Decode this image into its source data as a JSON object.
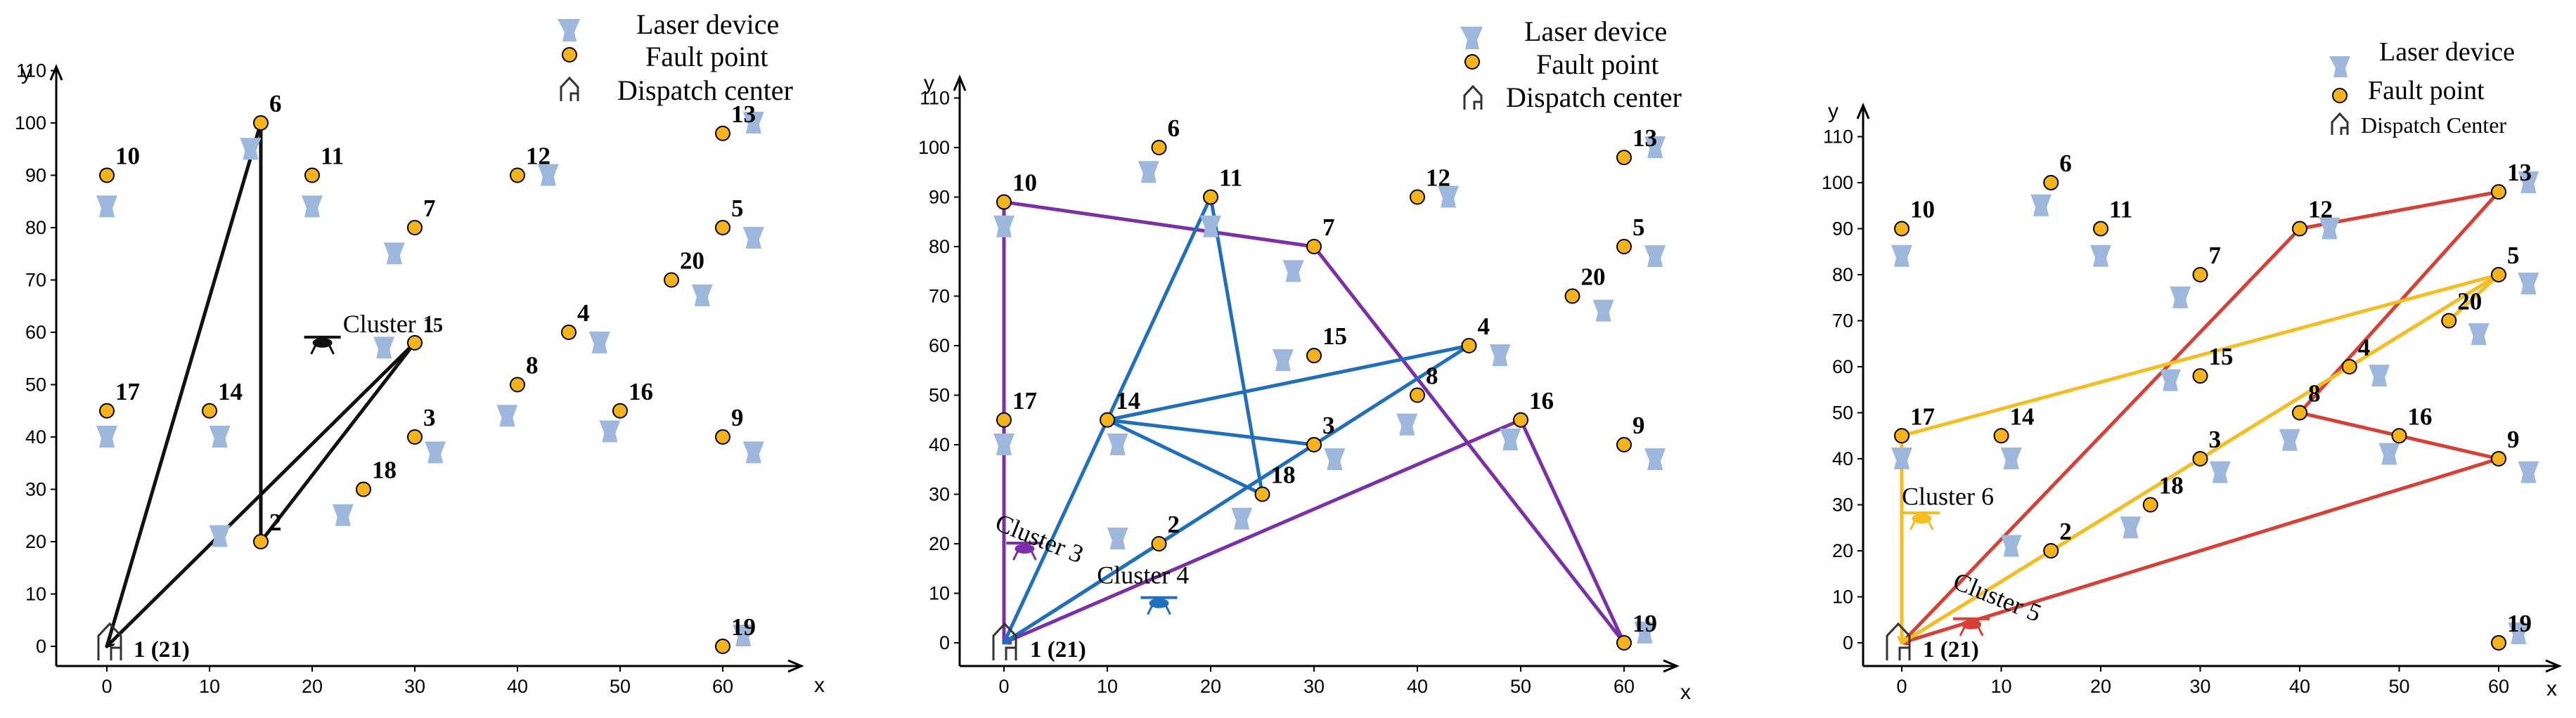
{
  "colors": {
    "fault": "#f5b31a",
    "laser": "#9db8dc",
    "black_route": "#111111",
    "purple": "#7b2fa8",
    "blue": "#1f6fc0",
    "red": "#d94035",
    "yellow": "#f5bd1f"
  },
  "chart_data": [
    {
      "type": "scatter",
      "title": "",
      "xlabel": "x",
      "ylabel": "y",
      "xlim": [
        -5,
        67
      ],
      "ylim": [
        -5,
        113
      ],
      "x_ticks": [
        "0",
        "10",
        "20",
        "30",
        "40",
        "50",
        "60"
      ],
      "y_ticks": [
        "0",
        "10",
        "20",
        "30",
        "40",
        "50",
        "60",
        "70",
        "80",
        "90",
        "100",
        "110"
      ],
      "legend": [
        "Laser device",
        "Fault point",
        "Dispatch center"
      ],
      "legend_icons": [
        "laser-device-icon",
        "fault-point-icon",
        "dispatch-center-icon"
      ],
      "depot_label": "1  (21)",
      "fault_points": [
        {
          "id": "2",
          "x": 15,
          "y": 20
        },
        {
          "id": "3",
          "x": 30,
          "y": 40
        },
        {
          "id": "4",
          "x": 45,
          "y": 60
        },
        {
          "id": "5",
          "x": 60,
          "y": 80
        },
        {
          "id": "6",
          "x": 15,
          "y": 100
        },
        {
          "id": "7",
          "x": 30,
          "y": 80
        },
        {
          "id": "8",
          "x": 40,
          "y": 50
        },
        {
          "id": "9",
          "x": 60,
          "y": 40
        },
        {
          "id": "10",
          "x": 0,
          "y": 90
        },
        {
          "id": "11",
          "x": 20,
          "y": 90
        },
        {
          "id": "12",
          "x": 40,
          "y": 90
        },
        {
          "id": "13",
          "x": 60,
          "y": 98
        },
        {
          "id": "14",
          "x": 10,
          "y": 45
        },
        {
          "id": "15",
          "x": 30,
          "y": 58
        },
        {
          "id": "16",
          "x": 50,
          "y": 45
        },
        {
          "id": "17",
          "x": 0,
          "y": 45
        },
        {
          "id": "18",
          "x": 25,
          "y": 30
        },
        {
          "id": "19",
          "x": 60,
          "y": 0
        },
        {
          "id": "20",
          "x": 55,
          "y": 70
        }
      ],
      "laser_devices": [
        {
          "x": 0,
          "y": 84
        },
        {
          "x": 0,
          "y": 40
        },
        {
          "x": 11,
          "y": 21
        },
        {
          "x": 11,
          "y": 40
        },
        {
          "x": 14,
          "y": 95
        },
        {
          "x": 20,
          "y": 84
        },
        {
          "x": 23,
          "y": 25
        },
        {
          "x": 28,
          "y": 75
        },
        {
          "x": 27,
          "y": 57
        },
        {
          "x": 32,
          "y": 37
        },
        {
          "x": 39,
          "y": 44
        },
        {
          "x": 43,
          "y": 90
        },
        {
          "x": 48,
          "y": 58
        },
        {
          "x": 49,
          "y": 41
        },
        {
          "x": 58,
          "y": 67
        },
        {
          "x": 63,
          "y": 78
        },
        {
          "x": 63,
          "y": 37
        },
        {
          "x": 63,
          "y": 100
        },
        {
          "x": 62,
          "y": 2
        }
      ],
      "routes": [
        {
          "name": "Cluster 1",
          "color": "black",
          "path": [
            [
              0,
              0
            ],
            [
              15,
              100
            ],
            [
              15,
              20
            ],
            [
              30,
              58
            ],
            [
              0,
              0
            ]
          ]
        }
      ],
      "clusters": [
        {
          "label": "Cluster 1",
          "x": 23,
          "y": 60,
          "color": "black",
          "drone": {
            "x": 21,
            "y": 58
          }
        }
      ]
    },
    {
      "type": "scatter",
      "title": "",
      "xlabel": "x",
      "ylabel": "y",
      "xlim": [
        -5,
        67
      ],
      "ylim": [
        -5,
        113
      ],
      "x_ticks": [
        "0",
        "10",
        "20",
        "30",
        "40",
        "50",
        "60"
      ],
      "y_ticks": [
        "0",
        "10",
        "20",
        "30",
        "40",
        "50",
        "60",
        "70",
        "80",
        "90",
        "100",
        "110"
      ],
      "legend": [
        "Laser device",
        "Fault point",
        "Dispatch center"
      ],
      "legend_icons": [
        "laser-device-icon",
        "fault-point-icon",
        "dispatch-center-icon"
      ],
      "depot_label": "1  (21)",
      "fault_points": [
        {
          "id": "2",
          "x": 15,
          "y": 20
        },
        {
          "id": "3",
          "x": 30,
          "y": 40
        },
        {
          "id": "4",
          "x": 45,
          "y": 60
        },
        {
          "id": "5",
          "x": 60,
          "y": 80
        },
        {
          "id": "6",
          "x": 15,
          "y": 100
        },
        {
          "id": "7",
          "x": 30,
          "y": 80
        },
        {
          "id": "8",
          "x": 40,
          "y": 50
        },
        {
          "id": "9",
          "x": 60,
          "y": 40
        },
        {
          "id": "10",
          "x": 0,
          "y": 89
        },
        {
          "id": "11",
          "x": 20,
          "y": 90
        },
        {
          "id": "12",
          "x": 40,
          "y": 90
        },
        {
          "id": "13",
          "x": 60,
          "y": 98
        },
        {
          "id": "14",
          "x": 10,
          "y": 45
        },
        {
          "id": "15",
          "x": 30,
          "y": 58
        },
        {
          "id": "16",
          "x": 50,
          "y": 45
        },
        {
          "id": "17",
          "x": 0,
          "y": 45
        },
        {
          "id": "18",
          "x": 25,
          "y": 30
        },
        {
          "id": "19",
          "x": 60,
          "y": 0
        },
        {
          "id": "20",
          "x": 55,
          "y": 70
        }
      ],
      "laser_devices": [
        {
          "x": 0,
          "y": 84
        },
        {
          "x": 0,
          "y": 40
        },
        {
          "x": 11,
          "y": 21
        },
        {
          "x": 11,
          "y": 40
        },
        {
          "x": 14,
          "y": 95
        },
        {
          "x": 20,
          "y": 84
        },
        {
          "x": 23,
          "y": 25
        },
        {
          "x": 28,
          "y": 75
        },
        {
          "x": 27,
          "y": 57
        },
        {
          "x": 32,
          "y": 37
        },
        {
          "x": 39,
          "y": 44
        },
        {
          "x": 43,
          "y": 90
        },
        {
          "x": 48,
          "y": 58
        },
        {
          "x": 49,
          "y": 41
        },
        {
          "x": 58,
          "y": 67
        },
        {
          "x": 63,
          "y": 78
        },
        {
          "x": 63,
          "y": 37
        },
        {
          "x": 63,
          "y": 100
        },
        {
          "x": 62,
          "y": 2
        }
      ],
      "routes": [
        {
          "name": "Cluster 3",
          "color": "purple",
          "path": [
            [
              0,
              0
            ],
            [
              0,
              89
            ],
            [
              30,
              80
            ],
            [
              60,
              0
            ],
            [
              50,
              45
            ],
            [
              0,
              0
            ]
          ]
        },
        {
          "name": "Cluster 4",
          "color": "blue",
          "path": [
            [
              0,
              0
            ],
            [
              30,
              40
            ],
            [
              10,
              45
            ],
            [
              45,
              60
            ],
            [
              0,
              0
            ],
            [
              20,
              90
            ],
            [
              25,
              30
            ],
            [
              10,
              45
            ]
          ]
        }
      ],
      "clusters": [
        {
          "label": "Cluster 3",
          "x": -1,
          "y": 23,
          "color": "purple",
          "drone": {
            "x": 2,
            "y": 19
          }
        },
        {
          "label": "Cluster 4",
          "x": 9,
          "y": 12,
          "color": "blue",
          "drone": {
            "x": 15,
            "y": 8
          }
        }
      ]
    },
    {
      "type": "scatter",
      "title": "",
      "xlabel": "x",
      "ylabel": "y",
      "xlim": [
        -5,
        67
      ],
      "ylim": [
        -5,
        113
      ],
      "x_ticks": [
        "0",
        "10",
        "20",
        "30",
        "40",
        "50",
        "60"
      ],
      "y_ticks": [
        "0",
        "10",
        "20",
        "30",
        "40",
        "50",
        "60",
        "70",
        "80",
        "90",
        "100",
        "110"
      ],
      "legend": [
        "Laser device",
        "Fault point",
        "Dispatch Center"
      ],
      "legend_icons": [
        "laser-device-icon",
        "fault-point-icon",
        "dispatch-center-icon"
      ],
      "depot_label": "1  (21)",
      "fault_points": [
        {
          "id": "2",
          "x": 15,
          "y": 20
        },
        {
          "id": "3",
          "x": 30,
          "y": 40
        },
        {
          "id": "4",
          "x": 45,
          "y": 60
        },
        {
          "id": "5",
          "x": 60,
          "y": 80
        },
        {
          "id": "6",
          "x": 15,
          "y": 100
        },
        {
          "id": "7",
          "x": 30,
          "y": 80
        },
        {
          "id": "8",
          "x": 40,
          "y": 50
        },
        {
          "id": "9",
          "x": 60,
          "y": 40
        },
        {
          "id": "10",
          "x": 0,
          "y": 90
        },
        {
          "id": "11",
          "x": 20,
          "y": 90
        },
        {
          "id": "12",
          "x": 40,
          "y": 90
        },
        {
          "id": "13",
          "x": 60,
          "y": 98
        },
        {
          "id": "14",
          "x": 10,
          "y": 45
        },
        {
          "id": "15",
          "x": 30,
          "y": 58
        },
        {
          "id": "16",
          "x": 50,
          "y": 45
        },
        {
          "id": "17",
          "x": 0,
          "y": 45
        },
        {
          "id": "18",
          "x": 25,
          "y": 30
        },
        {
          "id": "19",
          "x": 60,
          "y": 0
        },
        {
          "id": "20",
          "x": 55,
          "y": 70
        }
      ],
      "laser_devices": [
        {
          "x": 0,
          "y": 84
        },
        {
          "x": 0,
          "y": 40
        },
        {
          "x": 11,
          "y": 21
        },
        {
          "x": 11,
          "y": 40
        },
        {
          "x": 14,
          "y": 95
        },
        {
          "x": 20,
          "y": 84
        },
        {
          "x": 23,
          "y": 25
        },
        {
          "x": 28,
          "y": 75
        },
        {
          "x": 27,
          "y": 57
        },
        {
          "x": 32,
          "y": 37
        },
        {
          "x": 39,
          "y": 44
        },
        {
          "x": 43,
          "y": 90
        },
        {
          "x": 48,
          "y": 58
        },
        {
          "x": 49,
          "y": 41
        },
        {
          "x": 58,
          "y": 67
        },
        {
          "x": 63,
          "y": 78
        },
        {
          "x": 63,
          "y": 37
        },
        {
          "x": 63,
          "y": 100
        },
        {
          "x": 62,
          "y": 2
        }
      ],
      "routes": [
        {
          "name": "Cluster 5",
          "color": "red",
          "path": [
            [
              0,
              0
            ],
            [
              40,
              90
            ],
            [
              60,
              98
            ],
            [
              40,
              50
            ],
            [
              60,
              40
            ],
            [
              0,
              0
            ]
          ]
        },
        {
          "name": "Cluster 6",
          "color": "yellow",
          "path": [
            [
              0,
              0
            ],
            [
              60,
              80
            ],
            [
              0,
              45
            ],
            [
              0,
              0
            ],
            [
              60,
              80
            ],
            [
              55,
              70
            ]
          ]
        }
      ],
      "clusters": [
        {
          "label": "Cluster 6",
          "x": 0,
          "y": 30,
          "color": "yellow",
          "drone": {
            "x": 2,
            "y": 27
          }
        },
        {
          "label": "Cluster 5",
          "x": 5,
          "y": 12,
          "color": "red",
          "drone": {
            "x": 7,
            "y": 4
          }
        }
      ]
    }
  ]
}
